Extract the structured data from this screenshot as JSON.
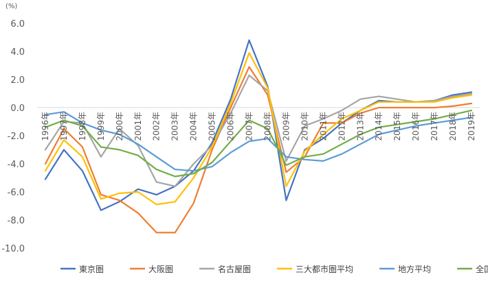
{
  "chart_data": {
    "type": "line",
    "unit_label": "(%)",
    "categories": [
      "1996年",
      "1997年",
      "1998年",
      "1999年",
      "2000年",
      "2001年",
      "2002年",
      "2003年",
      "2004年",
      "2005年",
      "2006年",
      "2007年",
      "2008年",
      "2009年",
      "2010年",
      "2011年",
      "2012年",
      "2013年",
      "2014年",
      "2015年",
      "2016年",
      "2017年",
      "2018年",
      "2019年"
    ],
    "ylim": [
      -10,
      6
    ],
    "yticks": [
      "6.0",
      "4.0",
      "2.0",
      "0.0",
      "-2.0",
      "-4.0",
      "-6.0",
      "-8.0",
      "-10.0"
    ],
    "grid": false,
    "legend_position": "bottom",
    "series": [
      {
        "name": "東京圏",
        "color": "#4472c4",
        "values": [
          -5.1,
          -3.0,
          -4.5,
          -7.3,
          -6.7,
          -5.8,
          -6.2,
          -5.6,
          -4.5,
          -2.5,
          0.6,
          4.8,
          1.5,
          -6.6,
          -3.0,
          -2.2,
          -1.1,
          -0.2,
          0.5,
          0.4,
          0.4,
          0.5,
          0.9,
          1.1
        ]
      },
      {
        "name": "大阪圏",
        "color": "#ed7d31",
        "values": [
          -4.0,
          -1.5,
          -2.8,
          -6.2,
          -6.6,
          -7.5,
          -8.9,
          -8.9,
          -6.8,
          -3.0,
          0.0,
          2.9,
          0.9,
          -4.6,
          -3.5,
          -1.1,
          -1.1,
          -0.4,
          0.0,
          0.0,
          0.0,
          0.0,
          0.1,
          0.3
        ]
      },
      {
        "name": "名古屋圏",
        "color": "#a5a5a5",
        "values": [
          -3.0,
          -1.0,
          -1.1,
          -3.5,
          -1.5,
          -2.7,
          -5.3,
          -5.6,
          -4.0,
          -2.7,
          -0.4,
          2.3,
          1.2,
          -3.8,
          -1.3,
          -0.8,
          -0.2,
          0.6,
          0.8,
          0.6,
          0.4,
          0.5,
          0.8,
          1.0
        ]
      },
      {
        "name": "三大都市圏平均",
        "color": "#ffc000",
        "values": [
          -4.5,
          -2.3,
          -3.5,
          -6.5,
          -6.1,
          -6.0,
          -6.9,
          -6.7,
          -5.0,
          -2.8,
          0.3,
          3.9,
          1.4,
          -5.6,
          -3.1,
          -1.9,
          -0.8,
          -0.2,
          0.4,
          0.4,
          0.4,
          0.4,
          0.7,
          0.9
        ]
      },
      {
        "name": "地方平均",
        "color": "#5b9bd5",
        "values": [
          -0.5,
          -0.3,
          -1.1,
          -1.6,
          -1.9,
          -2.6,
          -3.5,
          -4.4,
          -4.5,
          -4.2,
          -3.2,
          -2.4,
          -2.2,
          -3.5,
          -3.7,
          -3.8,
          -3.3,
          -2.6,
          -1.9,
          -1.6,
          -1.3,
          -1.1,
          -0.9,
          -0.7
        ]
      },
      {
        "name": "全国平均",
        "color": "#70ad47",
        "values": [
          -1.4,
          -0.9,
          -1.3,
          -2.8,
          -3.0,
          -3.4,
          -4.4,
          -4.9,
          -4.7,
          -3.9,
          -2.4,
          -0.9,
          -1.5,
          -4.1,
          -3.5,
          -3.3,
          -2.6,
          -1.9,
          -1.4,
          -1.2,
          -1.0,
          -0.8,
          -0.5,
          -0.2
        ]
      }
    ]
  }
}
